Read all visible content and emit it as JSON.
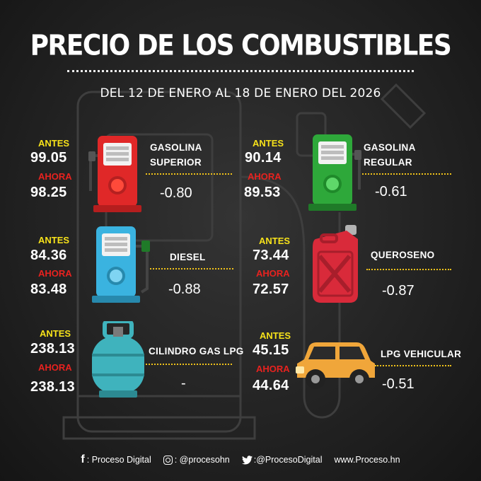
{
  "header": {
    "title": "PRECIO DE LOS COMBUSTIBLES",
    "subtitle": "DEL 12 DE ENERO AL 18 DE ENERO DEL 2026"
  },
  "labels": {
    "antes": "ANTES",
    "ahora": "AHORA"
  },
  "fuels": [
    {
      "name_line1": "GASOLINA",
      "name_line2": "SUPERIOR",
      "antes": "99.05",
      "ahora": "98.25",
      "diff": "-0.80",
      "icon": "red-fuel-pump-icon"
    },
    {
      "name_line1": "GASOLINA",
      "name_line2": "REGULAR",
      "antes": "90.14",
      "ahora": "89.53",
      "diff": "-0.61",
      "icon": "green-fuel-pump-icon"
    },
    {
      "name_line1": "DIESEL",
      "antes": "84.36",
      "ahora": "83.48",
      "diff": "-0.88",
      "icon": "blue-fuel-pump-icon"
    },
    {
      "name_line1": "QUEROSENO",
      "antes": "73.44",
      "ahora": "72.57",
      "diff": "-0.87",
      "icon": "red-jerrycan-icon"
    },
    {
      "name_line1": "CILINDRO GAS LPG",
      "antes": "238.13",
      "ahora": "238.13",
      "diff": "-",
      "icon": "gas-cylinder-icon"
    },
    {
      "name_line1": "LPG VEHICULAR",
      "antes": "45.15",
      "ahora": "44.64",
      "diff": "-0.51",
      "icon": "suv-car-icon"
    }
  ],
  "footer": {
    "facebook": ": Proceso Digital",
    "instagram": ": @procesohn",
    "twitter": ":@ProcesoDigital",
    "website": "www.Proceso.hn"
  },
  "colors": {
    "antes": "#f7e21a",
    "ahora": "#e8221f",
    "dots": "#f0c21a",
    "background": "#232323"
  }
}
